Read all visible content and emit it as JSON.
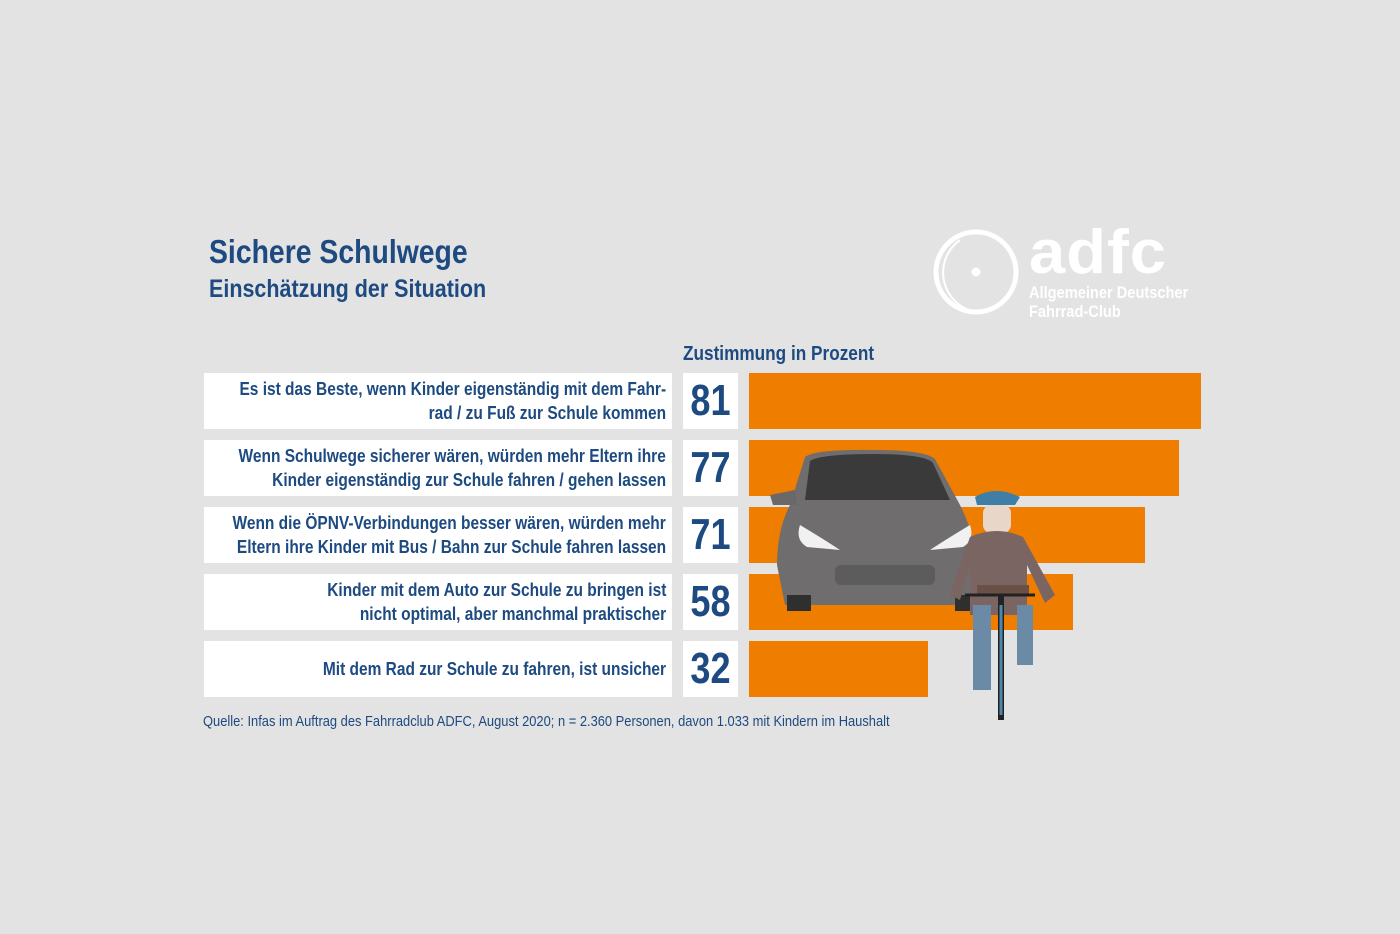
{
  "title": "Sichere Schulwege",
  "subtitle": "Einschätzung der Situation",
  "logo": {
    "text": "adfc",
    "line1": "Allgemeiner Deutscher",
    "line2": "Fahrrad-Club"
  },
  "colors": {
    "bar": "#ef7d00",
    "text": "#1d4a80",
    "background": "#e3e3e3"
  },
  "chart_data": {
    "type": "bar",
    "orientation": "horizontal",
    "xlabel": "Zustimmung in Prozent",
    "categories": [
      [
        "Es ist das Beste, wenn Kinder eigenständig mit dem Fahr-",
        "rad / zu Fuß zur Schule kommen"
      ],
      [
        "Wenn Schulwege sicherer wären, würden mehr Eltern ihre",
        "Kinder eigenständig zur Schule fahren / gehen lassen"
      ],
      [
        "Wenn die ÖPNV-Verbindungen besser wären, würden mehr",
        "Eltern ihre Kinder mit Bus / Bahn zur Schule fahren lassen"
      ],
      [
        "Kinder mit dem Auto zur Schule zu bringen ist",
        "nicht optimal, aber manchmal praktischer"
      ],
      [
        "Mit dem Rad zur Schule zu fahren, ist unsicher"
      ]
    ],
    "values": [
      81,
      77,
      71,
      58,
      32
    ],
    "xlim": [
      0,
      81
    ],
    "data_labels": [
      "81",
      "77",
      "71",
      "58",
      "32"
    ],
    "grid": false
  },
  "source": "Quelle: Infas im Auftrag des Fahrradclub ADFC, August 2020; n = 2.360 Personen, davon 1.033 mit Kindern im Haushalt"
}
